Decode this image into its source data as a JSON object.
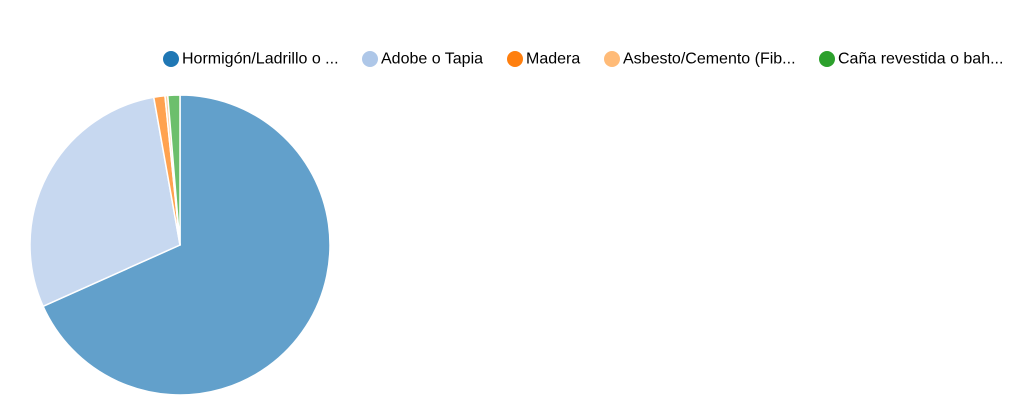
{
  "chart_data": {
    "type": "pie",
    "legend_position": "top",
    "categories": [
      "Hormigón/Ladrillo o ...",
      "Adobe o Tapia",
      "Madera",
      "Asbesto/Cemento (Fib...",
      "Caña revestida o bah..."
    ],
    "values": [
      68.3,
      28.9,
      1.2,
      0.3,
      1.3
    ],
    "unit": "%",
    "colors": [
      "#1f77b4",
      "#aec7e8",
      "#ff7f0e",
      "#ffbb78",
      "#2ca02c"
    ],
    "slice_colors": [
      "#62a0cb",
      "#c7d8f0",
      "#ffa24f",
      "#ffcfa0",
      "#6cbf6c"
    ],
    "start_angle_deg": 0,
    "direction": "clockwise"
  }
}
